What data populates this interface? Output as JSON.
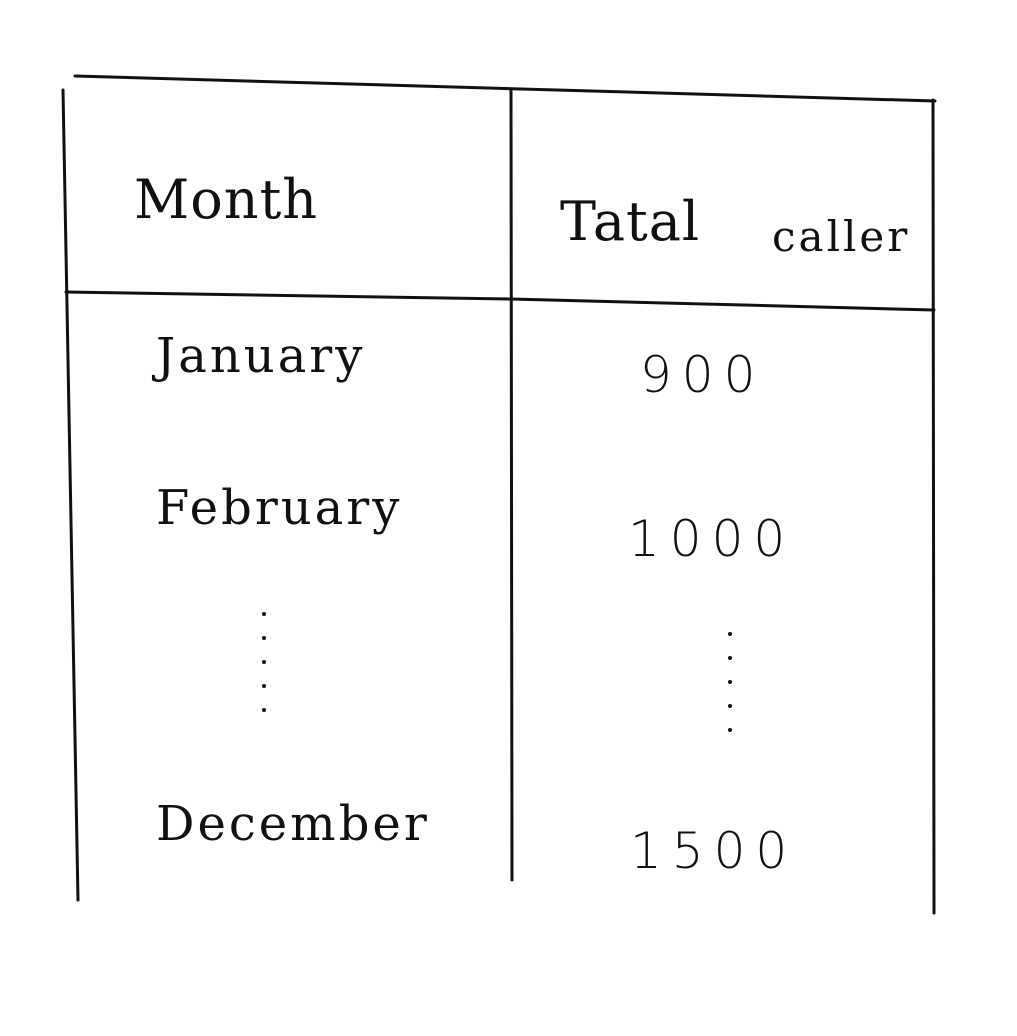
{
  "table": {
    "headers": {
      "month": "Month",
      "total_word1": "Tatal",
      "total_word2": "caller"
    },
    "rows": [
      {
        "month": "January",
        "total": "900"
      },
      {
        "month": "February",
        "total": "1000"
      },
      {
        "month": "December",
        "total": "1500"
      }
    ],
    "ellipsis_note": "vertical dots indicate omitted months"
  },
  "colors": {
    "ink": "#111111",
    "paper": "#ffffff"
  }
}
